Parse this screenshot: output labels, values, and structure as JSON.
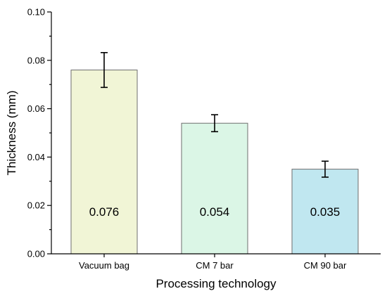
{
  "chart_data": {
    "type": "bar",
    "categories": [
      "Vacuum bag",
      "CM 7 bar",
      "CM 90 bar"
    ],
    "values": [
      0.076,
      0.054,
      0.035
    ],
    "errors": [
      0.0072,
      0.0035,
      0.0033
    ],
    "data_labels": [
      "0.076",
      "0.054",
      "0.035"
    ],
    "bar_colors": [
      "#f1f5d6",
      "#dbf6e6",
      "#c0e7f0"
    ],
    "xlabel": "Processing technology",
    "ylabel": "Thickness (mm)",
    "ylim": [
      0.0,
      0.1
    ],
    "yticks": [
      0.0,
      0.02,
      0.04,
      0.06,
      0.08,
      0.1
    ],
    "ytick_labels": [
      "0.00",
      "0.02",
      "0.04",
      "0.06",
      "0.08",
      "0.10"
    ],
    "grid": false,
    "legend": "none"
  }
}
